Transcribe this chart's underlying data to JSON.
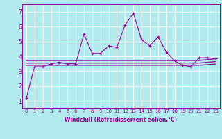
{
  "xlabel": "Windchill (Refroidissement éolien,°C)",
  "bg_color": "#b2ebee",
  "grid_color": "#c8eef0",
  "line_color": "#990099",
  "x_values": [
    0,
    1,
    2,
    3,
    4,
    5,
    6,
    7,
    8,
    9,
    10,
    11,
    12,
    13,
    14,
    15,
    16,
    17,
    18,
    19,
    20,
    21,
    22,
    23
  ],
  "y_main": [
    1.2,
    3.3,
    3.3,
    3.5,
    3.6,
    3.5,
    3.5,
    5.5,
    4.2,
    4.2,
    4.7,
    4.6,
    6.1,
    6.9,
    5.1,
    4.7,
    5.3,
    4.3,
    3.7,
    3.4,
    3.3,
    3.9,
    3.9,
    3.85
  ],
  "y_smooth1": [
    3.72,
    3.72,
    3.72,
    3.72,
    3.72,
    3.72,
    3.72,
    3.72,
    3.72,
    3.72,
    3.72,
    3.72,
    3.72,
    3.72,
    3.72,
    3.72,
    3.72,
    3.72,
    3.72,
    3.72,
    3.72,
    3.72,
    3.78,
    3.84
  ],
  "y_smooth2": [
    3.55,
    3.55,
    3.55,
    3.55,
    3.55,
    3.55,
    3.55,
    3.55,
    3.55,
    3.55,
    3.55,
    3.55,
    3.55,
    3.55,
    3.55,
    3.55,
    3.55,
    3.55,
    3.55,
    3.55,
    3.55,
    3.55,
    3.6,
    3.65
  ],
  "y_smooth3": [
    3.4,
    3.4,
    3.4,
    3.4,
    3.4,
    3.4,
    3.4,
    3.4,
    3.4,
    3.4,
    3.4,
    3.4,
    3.4,
    3.4,
    3.4,
    3.4,
    3.4,
    3.4,
    3.4,
    3.4,
    3.4,
    3.4,
    3.44,
    3.48
  ],
  "ylim": [
    0.5,
    7.5
  ],
  "yticks": [
    1,
    2,
    3,
    4,
    5,
    6,
    7
  ],
  "xlim": [
    -0.5,
    23.5
  ],
  "xlabel_fontsize": 5.5,
  "tick_fontsize": 5.0
}
